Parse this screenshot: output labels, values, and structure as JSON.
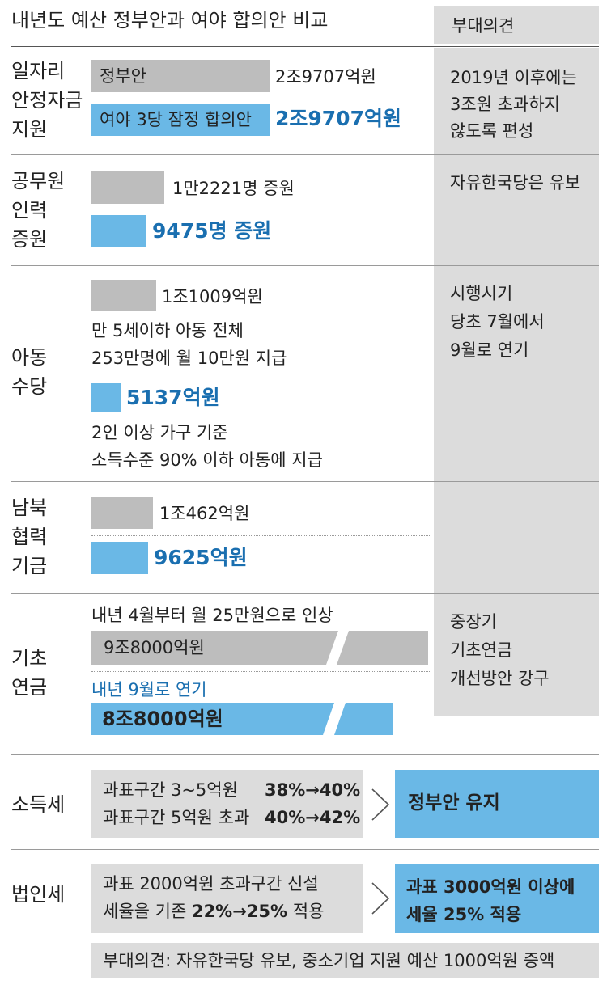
{
  "title": "내년도 예산 정부안과 여야 합의안 비교",
  "side_header": "부대의견",
  "rows": {
    "jobs": {
      "category": [
        "일자리",
        "안정자금",
        "지원"
      ],
      "gov_label": "정부안",
      "gov_value": "2조9707억원",
      "agree_label": "여야 3당 잠정 합의안",
      "agree_value": "2조9707억원",
      "note": [
        "2019년 이후에는",
        "3조원 초과하지",
        "않도록 편성"
      ]
    },
    "civil": {
      "category": [
        "공무원",
        "인력",
        "증원"
      ],
      "gov_value": "1만2221명 증원",
      "agree_value": "9475명 증원",
      "note": [
        "자유한국당은 유보"
      ]
    },
    "child": {
      "category": [
        "아동",
        "수당"
      ],
      "gov_value": "1조1009억원",
      "gov_desc": [
        "만 5세이하 아동 전체",
        "253만명에 월 10만원 지급"
      ],
      "agree_value": "5137억원",
      "agree_desc": [
        "2인 이상 가구 기준",
        "소득수준 90% 이하 아동에 지급"
      ],
      "note": [
        "시행시기",
        "당초 7월에서",
        "9월로 연기"
      ]
    },
    "nk": {
      "category": [
        "남북",
        "협력",
        "기금"
      ],
      "gov_value": "1조462억원",
      "agree_value": "9625억원"
    },
    "pension": {
      "category": [
        "기초",
        "연금"
      ],
      "gov_desc": "내년 4월부터 월 25만원으로 인상",
      "gov_value": "9조8000억원",
      "agree_desc": "내년 9월로 연기",
      "agree_value": "8조8000억원",
      "note": [
        "중장기",
        "기초연금",
        "개선방안 강구"
      ]
    },
    "income_tax": {
      "category": "소득세",
      "gov_lines": [
        {
          "label": "과표구간 3~5억원",
          "value": "38%→40%"
        },
        {
          "label": "과표구간 5억원 초과",
          "value": "40%→42%"
        }
      ],
      "result": "정부안 유지"
    },
    "corp_tax": {
      "category": "법인세",
      "gov_line1": "과표 2000억원 초과구간 신설",
      "gov_line2_prefix": "세율을 기존 ",
      "gov_line2_value": "22%→25%",
      "gov_line2_suffix": " 적용",
      "result": [
        "과표 3000억원 이상에",
        "세율 25% 적용"
      ]
    }
  },
  "footer_note": "부대의견: 자유한국당 유보, 중소기업 지원 예산 1000억원 증액",
  "colors": {
    "gray": "#bdbdbd",
    "blue": "#6ab8e6",
    "side": "#dcdcdc",
    "accent_text": "#1a6fb0"
  }
}
